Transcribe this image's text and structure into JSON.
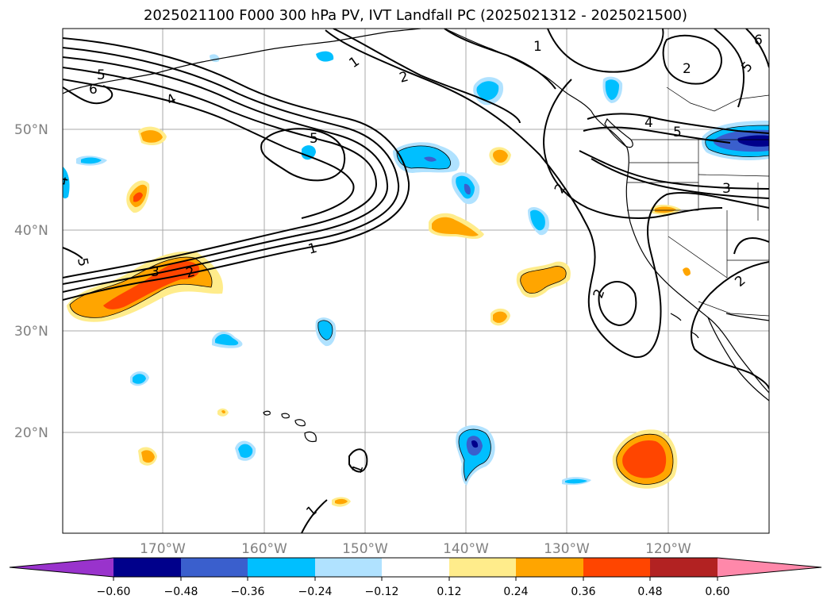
{
  "title": "2025021100 F000 300 hPa PV, IVT Landfall PC (2025021312 - 2025021500)",
  "map": {
    "lat_labels": [
      "50°N",
      "40°N",
      "30°N",
      "20°N"
    ],
    "lon_labels": [
      "170°W",
      "160°W",
      "150°W",
      "140°W",
      "130°W",
      "120°W"
    ],
    "contour_labels": [
      "1",
      "2",
      "3",
      "4",
      "5",
      "6"
    ]
  },
  "colorbar": {
    "ticks": [
      "−0.60",
      "−0.48",
      "−0.36",
      "−0.24",
      "−0.12",
      "0.12",
      "0.24",
      "0.36",
      "0.48",
      "0.60"
    ],
    "colors": [
      "#9933cc",
      "#00008b",
      "#3a5fcd",
      "#00bfff",
      "#b0e2ff",
      "#ffffff",
      "#ffec8b",
      "#ffa500",
      "#ff4500",
      "#b22222",
      "#ff88aa"
    ]
  }
}
